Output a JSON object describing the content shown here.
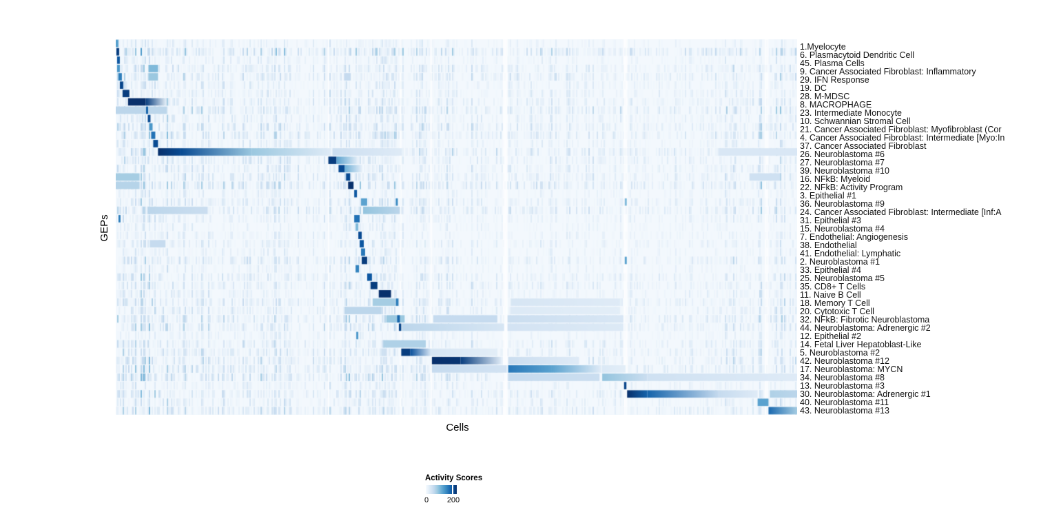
{
  "figure": {
    "ylabel": "GEPs",
    "xlabel": "Cells",
    "legend": {
      "title": "Activity Scores",
      "tick0": "0",
      "tick200": "200"
    }
  },
  "chart_data": {
    "type": "heatmap",
    "title": "",
    "xlabel": "Cells",
    "ylabel": "GEPs",
    "legend_title": "Activity Scores",
    "colorscale": "Blues",
    "vmin": 0,
    "vmax": 230,
    "legend_tick_value": 200,
    "value_scale": "segment intensities are fractions of vmax (activity score = v * 230)",
    "grid": false,
    "legend_position": "bottom-left",
    "colormap_stops": [
      [
        0.0,
        247,
        251,
        255
      ],
      [
        0.125,
        222,
        235,
        247
      ],
      [
        0.25,
        198,
        219,
        239
      ],
      [
        0.375,
        158,
        202,
        225
      ],
      [
        0.5,
        107,
        174,
        214
      ],
      [
        0.625,
        66,
        146,
        198
      ],
      [
        0.75,
        33,
        113,
        181
      ],
      [
        0.875,
        8,
        81,
        156
      ],
      [
        1.0,
        8,
        48,
        107
      ]
    ],
    "seams": [
      [
        0.3115,
        0.3135
      ],
      [
        0.4165,
        0.4195
      ],
      [
        0.4615,
        0.4645
      ],
      [
        0.568,
        0.575
      ],
      [
        0.745,
        0.751
      ],
      [
        0.9525,
        0.958
      ]
    ],
    "region_weights": [
      [
        0.0,
        0.08,
        1.4
      ],
      [
        0.08,
        0.31,
        0.95
      ],
      [
        0.31,
        0.42,
        1.1
      ],
      [
        0.42,
        0.57,
        0.85
      ],
      [
        0.57,
        0.75,
        0.7
      ],
      [
        0.75,
        0.89,
        0.55
      ],
      [
        0.89,
        1.0,
        1.05
      ]
    ],
    "rows": [
      {
        "label": "1.Myelocyte",
        "texture": 0.3,
        "segments": [
          [
            0.0,
            0.004,
            0.55,
            0.55
          ]
        ]
      },
      {
        "label": "6. Plasmacytoid Dendritic Cell",
        "texture": 0.85,
        "segments": [
          [
            0.001,
            0.005,
            0.95,
            0.95
          ]
        ]
      },
      {
        "label": "45. Plasma Cells",
        "texture": 0.35,
        "segments": [
          [
            0.002,
            0.006,
            0.85,
            0.85
          ]
        ]
      },
      {
        "label": "9. Cancer Associated Fibroblast: Inflammatory",
        "texture": 0.55,
        "segments": [
          [
            0.002,
            0.006,
            0.6,
            0.6
          ],
          [
            0.048,
            0.062,
            0.45,
            0.45
          ]
        ]
      },
      {
        "label": "29. IFN Response",
        "texture": 0.6,
        "segments": [
          [
            0.004,
            0.009,
            0.7,
            0.7
          ],
          [
            0.048,
            0.062,
            0.38,
            0.38
          ],
          [
            0.335,
            0.345,
            0.25,
            0.25
          ]
        ]
      },
      {
        "label": "19. DC",
        "texture": 0.4,
        "segments": [
          [
            0.006,
            0.011,
            0.92,
            0.92
          ]
        ]
      },
      {
        "label": "28. M-MDSC",
        "texture": 0.45,
        "segments": [
          [
            0.01,
            0.02,
            0.95,
            0.95
          ]
        ]
      },
      {
        "label": "8. MACROPHAGE",
        "texture": 0.55,
        "segments": [
          [
            0.018,
            0.044,
            1.0,
            1.0
          ],
          [
            0.044,
            0.074,
            0.95,
            0.1
          ]
        ]
      },
      {
        "label": "23. Intermediate Monocyte",
        "texture": 0.7,
        "segments": [
          [
            0.0,
            0.075,
            0.28,
            0.28
          ],
          [
            0.0445,
            0.0475,
            0.8,
            0.8
          ]
        ]
      },
      {
        "label": "10. Schwannian Stromal Cell",
        "texture": 0.45,
        "segments": [
          [
            0.047,
            0.051,
            0.9,
            0.9
          ]
        ]
      },
      {
        "label": "21. Cancer Associated Fibroblast: Myofibroblast (Cor",
        "texture": 0.6,
        "segments": [
          [
            0.049,
            0.054,
            0.6,
            0.6
          ]
        ]
      },
      {
        "label": "4. Cancer Associated Fibroblast: Intermediate [Myo:In",
        "texture": 0.65,
        "segments": [
          [
            0.052,
            0.058,
            0.75,
            0.75
          ]
        ]
      },
      {
        "label": "37. Cancer Associated Fibroblast",
        "texture": 0.4,
        "segments": [
          [
            0.055,
            0.062,
            0.9,
            0.9
          ]
        ]
      },
      {
        "label": "26. Neuroblastoma #6",
        "texture": 0.75,
        "segments": [
          [
            0.062,
            0.095,
            1.0,
            0.9
          ],
          [
            0.095,
            0.2,
            0.9,
            0.38
          ],
          [
            0.2,
            0.3155,
            0.38,
            0.12
          ],
          [
            0.318,
            0.42,
            0.22,
            0.12
          ],
          [
            0.885,
            1.0,
            0.15,
            0.15
          ]
        ]
      },
      {
        "label": "27. Neuroblastoma #7",
        "texture": 0.55,
        "segments": [
          [
            0.312,
            0.324,
            0.95,
            0.95
          ],
          [
            0.324,
            0.355,
            0.55,
            0.1
          ]
        ]
      },
      {
        "label": "39. Neuroblastoma #10",
        "texture": 0.5,
        "segments": [
          [
            0.327,
            0.336,
            0.9,
            0.9
          ],
          [
            0.336,
            0.36,
            0.5,
            0.12
          ]
        ]
      },
      {
        "label": "16. NFkB: Myeloid",
        "texture": 0.6,
        "segments": [
          [
            0.0,
            0.035,
            0.35,
            0.35
          ],
          [
            0.338,
            0.344,
            0.9,
            0.9
          ],
          [
            0.93,
            0.975,
            0.2,
            0.2
          ]
        ]
      },
      {
        "label": "22. NFkB: Activity Program",
        "texture": 0.75,
        "segments": [
          [
            0.0,
            0.035,
            0.3,
            0.3
          ],
          [
            0.341,
            0.349,
            1.0,
            1.0
          ]
        ]
      },
      {
        "label": "3. Epithelial #1",
        "texture": 0.3,
        "segments": [
          [
            0.35,
            0.354,
            0.85,
            0.85
          ]
        ]
      },
      {
        "label": "36. Neuroblastoma #9",
        "texture": 0.5,
        "segments": [
          [
            0.36,
            0.369,
            0.55,
            0.55
          ],
          [
            0.411,
            0.414,
            0.65,
            0.65
          ],
          [
            0.747,
            0.75,
            0.45,
            0.45
          ]
        ]
      },
      {
        "label": "24. Cancer Associated Fibroblast: Intermediate [Inf:A",
        "texture": 0.7,
        "segments": [
          [
            0.047,
            0.135,
            0.28,
            0.22
          ],
          [
            0.363,
            0.417,
            0.4,
            0.28
          ]
        ]
      },
      {
        "label": "31. Epithelial #3",
        "texture": 0.4,
        "segments": [
          [
            0.004,
            0.007,
            0.7,
            0.7
          ],
          [
            0.35,
            0.358,
            0.75,
            0.75
          ]
        ]
      },
      {
        "label": "15. Neuroblastoma #4",
        "texture": 0.3,
        "segments": [
          [
            0.352,
            0.356,
            0.45,
            0.45
          ]
        ]
      },
      {
        "label": "7. Endothelial: Angiogenesis",
        "texture": 0.35,
        "segments": [
          [
            0.356,
            0.361,
            0.9,
            0.9
          ]
        ]
      },
      {
        "label": "38. Endothelial",
        "texture": 0.4,
        "segments": [
          [
            0.05,
            0.073,
            0.25,
            0.25
          ],
          [
            0.358,
            0.364,
            0.85,
            0.85
          ]
        ]
      },
      {
        "label": "41. Endothelial: Lymphatic",
        "texture": 0.3,
        "segments": [
          [
            0.36,
            0.366,
            0.72,
            0.72
          ]
        ]
      },
      {
        "label": "2. Neuroblastoma #1",
        "texture": 0.55,
        "segments": [
          [
            0.361,
            0.369,
            0.95,
            0.95
          ],
          [
            0.747,
            0.75,
            0.55,
            0.55
          ]
        ]
      },
      {
        "label": "33. Epithelial #4",
        "texture": 0.3,
        "segments": [
          [
            0.352,
            0.357,
            0.68,
            0.68
          ]
        ]
      },
      {
        "label": "25. Neuroblastoma #5",
        "texture": 0.5,
        "segments": [
          [
            0.369,
            0.376,
            0.85,
            0.85
          ]
        ]
      },
      {
        "label": "35. CD8+ T Cells",
        "texture": 0.5,
        "segments": [
          [
            0.374,
            0.384,
            0.95,
            0.95
          ]
        ]
      },
      {
        "label": "11. Naive B Cell",
        "texture": 0.4,
        "segments": [
          [
            0.386,
            0.404,
            1.0,
            1.0
          ]
        ]
      },
      {
        "label": "18. Memory T Cell",
        "texture": 0.55,
        "segments": [
          [
            0.377,
            0.41,
            0.35,
            0.35
          ],
          [
            0.411,
            0.415,
            0.7,
            0.7
          ],
          [
            0.58,
            0.74,
            0.16,
            0.12
          ]
        ]
      },
      {
        "label": "20. Cytotoxic T Cell",
        "texture": 0.5,
        "segments": [
          [
            0.336,
            0.39,
            0.28,
            0.28
          ],
          [
            0.58,
            0.74,
            0.13,
            0.1
          ]
        ]
      },
      {
        "label": "32. NFkB: Fibrotic Neuroblastoma",
        "texture": 0.65,
        "segments": [
          [
            0.397,
            0.424,
            0.38,
            0.38
          ],
          [
            0.413,
            0.417,
            0.8,
            0.8
          ],
          [
            0.466,
            0.56,
            0.25,
            0.25
          ],
          [
            0.575,
            0.745,
            0.22,
            0.15
          ]
        ]
      },
      {
        "label": "44. Neuroblastoma: Adrenergic #2",
        "texture": 0.6,
        "segments": [
          [
            0.4155,
            0.419,
            0.92,
            0.92
          ],
          [
            0.42,
            0.57,
            0.28,
            0.16
          ],
          [
            0.575,
            0.745,
            0.18,
            0.13
          ]
        ]
      },
      {
        "label": "12. Epithelial #2",
        "texture": 0.3,
        "segments": [
          [
            0.353,
            0.356,
            0.6,
            0.6
          ]
        ]
      },
      {
        "label": "14. Fetal Liver Hepatoblast-Like",
        "texture": 0.55,
        "segments": [
          [
            0.393,
            0.455,
            0.32,
            0.32
          ]
        ]
      },
      {
        "label": "5. Neuroblastoma #2",
        "texture": 0.55,
        "segments": [
          [
            0.419,
            0.432,
            0.95,
            0.95
          ],
          [
            0.432,
            0.462,
            0.88,
            0.18
          ],
          [
            0.462,
            0.56,
            0.16,
            0.1
          ]
        ]
      },
      {
        "label": "42. Neuroblastoma #12",
        "texture": 0.6,
        "segments": [
          [
            0.464,
            0.506,
            1.0,
            0.98
          ],
          [
            0.506,
            0.566,
            0.95,
            0.12
          ],
          [
            0.576,
            0.68,
            0.22,
            0.12
          ]
        ]
      },
      {
        "label": "17. Neuroblastoma: MYCN",
        "texture": 0.65,
        "segments": [
          [
            0.464,
            0.574,
            0.25,
            0.18
          ],
          [
            0.576,
            0.64,
            0.72,
            0.55
          ],
          [
            0.64,
            0.712,
            0.55,
            0.12
          ],
          [
            0.714,
            0.748,
            0.14,
            0.1
          ]
        ]
      },
      {
        "label": "34. Neuroblastoma #8",
        "texture": 0.7,
        "segments": [
          [
            0.576,
            0.71,
            0.25,
            0.22
          ],
          [
            0.714,
            0.78,
            0.4,
            0.22
          ],
          [
            0.78,
            1.0,
            0.2,
            0.12
          ]
        ]
      },
      {
        "label": "13. Neuroblastoma #3",
        "texture": 0.35,
        "segments": [
          [
            0.746,
            0.7495,
            0.92,
            0.92
          ]
        ]
      },
      {
        "label": "30. Neuroblastoma: Adrenergic #1",
        "texture": 0.55,
        "segments": [
          [
            0.7505,
            0.78,
            1.0,
            0.8
          ],
          [
            0.78,
            0.885,
            0.8,
            0.25
          ],
          [
            0.885,
            0.942,
            0.25,
            0.12
          ],
          [
            0.96,
            1.0,
            0.32,
            0.28
          ]
        ]
      },
      {
        "label": "40. Neuroblastoma #11",
        "texture": 0.45,
        "segments": [
          [
            0.942,
            0.958,
            0.55,
            0.55
          ]
        ]
      },
      {
        "label": "43. Neuroblastoma #13",
        "texture": 0.6,
        "segments": [
          [
            0.958,
            1.0,
            0.78,
            0.35
          ]
        ]
      }
    ]
  }
}
